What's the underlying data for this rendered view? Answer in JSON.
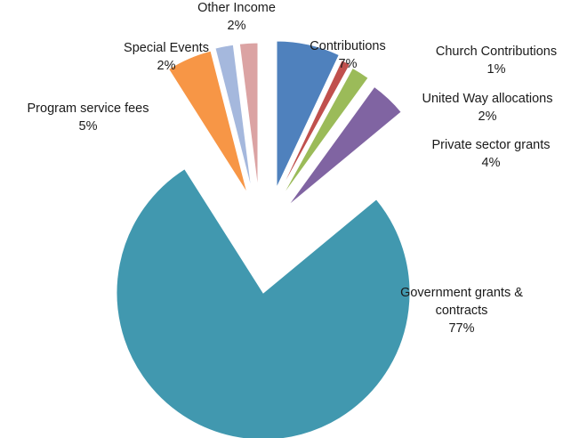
{
  "chart_data": {
    "type": "pie",
    "title": "",
    "slices": [
      {
        "category": "Contributions",
        "value": 7,
        "label": "7%",
        "color": "#4f81bd"
      },
      {
        "category": "Church Contributions",
        "value": 1,
        "label": "1%",
        "color": "#c0504d"
      },
      {
        "category": "United Way allocations",
        "value": 2,
        "label": "2%",
        "color": "#9bbb59"
      },
      {
        "category": "Private sector grants",
        "value": 4,
        "label": "4%",
        "color": "#8064a2"
      },
      {
        "category": "Government  grants & contracts",
        "value": 77,
        "label": "77%",
        "color": "#4198af"
      },
      {
        "category": "Program service fees",
        "value": 5,
        "label": "5%",
        "color": "#f79646"
      },
      {
        "category": "Special Events",
        "value": 2,
        "label": "2%",
        "color": "#a5b8dd"
      },
      {
        "category": "Other Income",
        "value": 2,
        "label": "2%",
        "color": "#dba3a3"
      }
    ],
    "exploded": true,
    "legend": "none"
  }
}
